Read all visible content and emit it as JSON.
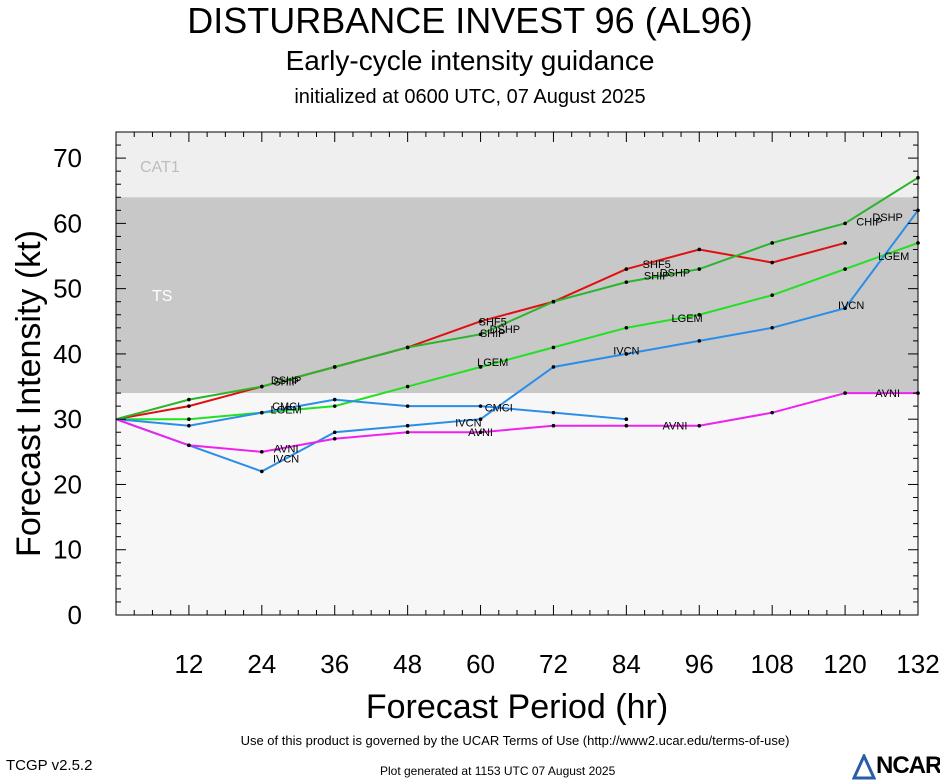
{
  "title": "DISTURBANCE INVEST 96 (AL96)",
  "subtitle": "Early-cycle intensity guidance",
  "initialized": "initialized at 0600 UTC, 07 August 2025",
  "terms": "Use of this product is governed by the UCAR Terms of Use (http://www2.ucar.edu/terms-of-use)",
  "version": "TCGP v2.5.2",
  "plot_generated": "Plot generated at 1153 UTC   07 August 2025",
  "logo_text": "NCAR",
  "chart_data": {
    "type": "line",
    "xlabel": "Forecast Period (hr)",
    "ylabel": "Forecast Intensity (kt)",
    "xlim": [
      0,
      132
    ],
    "ylim": [
      0,
      74
    ],
    "xticks": [
      12,
      24,
      36,
      48,
      60,
      72,
      84,
      96,
      108,
      120,
      132
    ],
    "yticks": [
      0,
      10,
      20,
      30,
      40,
      50,
      60,
      70
    ],
    "bands": [
      {
        "label": "CAT1",
        "from": 64,
        "to": 74,
        "color": "#efefef"
      },
      {
        "label": "TS",
        "from": 34,
        "to": 64,
        "color": "#c8c8c8"
      },
      {
        "label": "",
        "from": 0,
        "to": 34,
        "color": "#f7f7f7"
      }
    ],
    "series": [
      {
        "name": "SHF5",
        "color": "#e01010",
        "x": [
          0,
          12,
          24,
          36,
          48,
          60,
          72,
          84,
          96,
          108,
          120
        ],
        "y": [
          30,
          32,
          35,
          38,
          41,
          45,
          48,
          53,
          56,
          54,
          57
        ]
      },
      {
        "name": "DSHP",
        "color": "#2ab52a",
        "x": [
          0,
          12,
          24,
          36,
          48,
          60,
          72,
          84,
          96,
          108,
          120,
          132
        ],
        "y": [
          30,
          33,
          35,
          38,
          41,
          43,
          48,
          51,
          53,
          57,
          60,
          67
        ]
      },
      {
        "name": "LGEM",
        "color": "#22e022",
        "x": [
          0,
          12,
          24,
          36,
          48,
          60,
          72,
          84,
          96,
          108,
          120,
          132
        ],
        "y": [
          30,
          30,
          31,
          32,
          35,
          38,
          41,
          44,
          46,
          49,
          53,
          57
        ]
      },
      {
        "name": "IVCN",
        "color": "#2a8ee8",
        "x": [
          0,
          12,
          24,
          36,
          48,
          60,
          72,
          84,
          96,
          108,
          120,
          132
        ],
        "y": [
          30,
          26,
          22,
          28,
          29,
          30,
          38,
          40,
          42,
          44,
          47,
          62
        ]
      },
      {
        "name": "CMCI",
        "color": "#2a8ee8",
        "x": [
          0,
          12,
          24,
          36,
          48,
          60,
          72,
          84
        ],
        "y": [
          30,
          29,
          31,
          33,
          32,
          32,
          31,
          30
        ]
      },
      {
        "name": "AVNI",
        "color": "#ee22ee",
        "x": [
          0,
          12,
          24,
          36,
          48,
          60,
          72,
          84,
          96,
          108,
          120,
          132
        ],
        "y": [
          30,
          26,
          25,
          27,
          28,
          28,
          29,
          29,
          29,
          31,
          34,
          34
        ]
      }
    ],
    "annotations": [
      {
        "text": "SHF5",
        "x": 62,
        "y": 45
      },
      {
        "text": "SHF5",
        "x": 89,
        "y": 53.8
      },
      {
        "text": "DSHP",
        "x": 28,
        "y": 36
      },
      {
        "text": "DSHP",
        "x": 64,
        "y": 43.8
      },
      {
        "text": "SHIP",
        "x": 28,
        "y": 35.8
      },
      {
        "text": "SHIP",
        "x": 62,
        "y": 43.2
      },
      {
        "text": "SHIP",
        "x": 89,
        "y": 52
      },
      {
        "text": "DSHP",
        "x": 92,
        "y": 52.5
      },
      {
        "text": "CHIP",
        "x": 124,
        "y": 60.3
      },
      {
        "text": "DSHP",
        "x": 127,
        "y": 61
      },
      {
        "text": "LGEM",
        "x": 28,
        "y": 31.5
      },
      {
        "text": "LGEM",
        "x": 62,
        "y": 38.8
      },
      {
        "text": "LGEM",
        "x": 94,
        "y": 45.5
      },
      {
        "text": "LGEM",
        "x": 128,
        "y": 55
      },
      {
        "text": "CMCI",
        "x": 28,
        "y": 32
      },
      {
        "text": "CMCI",
        "x": 63,
        "y": 31.8
      },
      {
        "text": "IVCN",
        "x": 28,
        "y": 24
      },
      {
        "text": "IVCN",
        "x": 58,
        "y": 29.5
      },
      {
        "text": "IVCN",
        "x": 84,
        "y": 40.5
      },
      {
        "text": "IVCN",
        "x": 121,
        "y": 47.5
      },
      {
        "text": "AVNI",
        "x": 28,
        "y": 25.5
      },
      {
        "text": "AVNI",
        "x": 60,
        "y": 28
      },
      {
        "text": "AVNI",
        "x": 92,
        "y": 29
      },
      {
        "text": "AVNI",
        "x": 127,
        "y": 34
      }
    ]
  }
}
